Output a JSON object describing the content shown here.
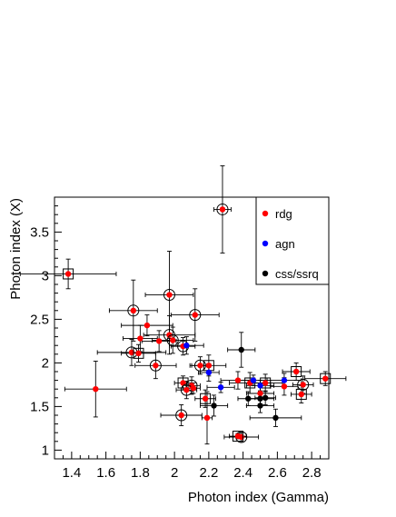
{
  "chart_data": {
    "type": "scatter",
    "xlabel": "Photon index (Gamma)",
    "ylabel": "Photon index (X)",
    "xlim": [
      1.3,
      2.9
    ],
    "ylim": [
      0.9,
      3.9
    ],
    "x_ticks": [
      "1.4",
      "1.6",
      "1.8",
      "2",
      "2.2",
      "2.4",
      "2.6",
      "2.8"
    ],
    "x_tick_values": [
      1.4,
      1.6,
      1.8,
      2.0,
      2.2,
      2.4,
      2.6,
      2.8
    ],
    "y_ticks": [
      "1",
      "1.5",
      "2",
      "2.5",
      "3",
      "3.5"
    ],
    "y_tick_values": [
      1.0,
      1.5,
      2.0,
      2.5,
      3.0,
      3.5
    ],
    "legend_position": "top-right",
    "colors": {
      "rdg": "#ff0000",
      "agn": "#0000ff",
      "css/ssrq": "#000000"
    },
    "series": [
      {
        "name": "rdg",
        "marker_color": "#ff0000",
        "points": [
          {
            "x": 2.28,
            "y": 3.76,
            "xerr": 0.05,
            "yerr": 0.5,
            "marker": "circle"
          },
          {
            "x": 1.38,
            "y": 3.02,
            "xerr": 0.28,
            "yerr": 0.17,
            "marker": "box"
          },
          {
            "x": 1.97,
            "y": 2.78,
            "xerr": 0.14,
            "yerr": 0.5,
            "marker": "circle"
          },
          {
            "x": 1.76,
            "y": 2.6,
            "xerr": 0.14,
            "yerr": 0.35,
            "marker": "circle"
          },
          {
            "x": 2.12,
            "y": 2.55,
            "xerr": 0.14,
            "yerr": 0.3,
            "marker": "circle"
          },
          {
            "x": 1.84,
            "y": 2.43,
            "xerr": 0.15,
            "yerr": 0.12
          },
          {
            "x": 1.97,
            "y": 2.32,
            "xerr": 0.15,
            "yerr": 0.22,
            "marker": "circle"
          },
          {
            "x": 1.8,
            "y": 2.28,
            "xerr": 0.1,
            "yerr": 0.15
          },
          {
            "x": 1.91,
            "y": 2.25,
            "xerr": 0.1,
            "yerr": 0.12
          },
          {
            "x": 1.99,
            "y": 2.26,
            "xerr": 0.12,
            "yerr": 0.15,
            "marker": "circle"
          },
          {
            "x": 2.05,
            "y": 2.19,
            "xerr": 0.07,
            "yerr": 0.1,
            "marker": "circle"
          },
          {
            "x": 1.75,
            "y": 2.12,
            "xerr": 0.2,
            "yerr": 0.15,
            "marker": "circle"
          },
          {
            "x": 1.79,
            "y": 2.11,
            "xerr": 0.1,
            "yerr": 0.1,
            "marker": "box"
          },
          {
            "x": 1.89,
            "y": 1.97,
            "xerr": 0.12,
            "yerr": 0.15,
            "marker": "circle"
          },
          {
            "x": 2.15,
            "y": 1.97,
            "xerr": 0.06,
            "yerr": 0.1,
            "marker": "circle"
          },
          {
            "x": 2.2,
            "y": 1.97,
            "xerr": 0.1,
            "yerr": 0.12,
            "marker": "box"
          },
          {
            "x": 2.05,
            "y": 1.77,
            "xerr": 0.05,
            "yerr": 0.08,
            "marker": "box"
          },
          {
            "x": 2.1,
            "y": 1.74,
            "xerr": 0.05,
            "yerr": 0.1,
            "marker": "circle"
          },
          {
            "x": 2.07,
            "y": 1.69,
            "xerr": 0.06,
            "yerr": 0.1,
            "marker": "circle"
          },
          {
            "x": 2.11,
            "y": 1.71,
            "xerr": 0.04,
            "yerr": 0.06
          },
          {
            "x": 2.37,
            "y": 1.8,
            "xerr": 0.1,
            "yerr": 0.1
          },
          {
            "x": 2.44,
            "y": 1.77,
            "xerr": 0.12,
            "yerr": 0.12,
            "marker": "box"
          },
          {
            "x": 2.53,
            "y": 1.77,
            "xerr": 0.1,
            "yerr": 0.1,
            "marker": "box"
          },
          {
            "x": 2.71,
            "y": 1.9,
            "xerr": 0.08,
            "yerr": 0.1,
            "marker": "box"
          },
          {
            "x": 2.88,
            "y": 1.82,
            "xerr": 0.12,
            "yerr": 0.08,
            "marker": "box"
          },
          {
            "x": 2.64,
            "y": 1.73,
            "xerr": 0.08,
            "yerr": 0.1
          },
          {
            "x": 2.75,
            "y": 1.75,
            "xerr": 0.06,
            "yerr": 0.1,
            "marker": "circle"
          },
          {
            "x": 2.74,
            "y": 1.64,
            "xerr": 0.06,
            "yerr": 0.1,
            "marker": "box"
          },
          {
            "x": 2.5,
            "y": 1.65,
            "xerr": 0.08,
            "yerr": 0.08
          },
          {
            "x": 1.54,
            "y": 1.7,
            "xerr": 0.18,
            "yerr": 0.32
          },
          {
            "x": 2.18,
            "y": 1.59,
            "xerr": 0.06,
            "yerr": 0.1,
            "marker": "box"
          },
          {
            "x": 2.04,
            "y": 1.4,
            "xerr": 0.12,
            "yerr": 0.12,
            "marker": "circle"
          },
          {
            "x": 2.19,
            "y": 1.37,
            "xerr": 0.03,
            "yerr": 0.3
          },
          {
            "x": 2.39,
            "y": 1.15,
            "xerr": 0.1,
            "yerr": 0.05,
            "marker": "circle"
          },
          {
            "x": 2.37,
            "y": 1.16,
            "xerr": 0.05,
            "yerr": 0.03,
            "marker": "box"
          }
        ]
      },
      {
        "name": "agn",
        "marker_color": "#0000ff",
        "points": [
          {
            "x": 2.07,
            "y": 2.2,
            "xerr": 0.1,
            "yerr": 0.1
          },
          {
            "x": 2.2,
            "y": 1.89,
            "xerr": 0.06,
            "yerr": 0.1
          },
          {
            "x": 2.27,
            "y": 1.72,
            "xerr": 0.08,
            "yerr": 0.06
          },
          {
            "x": 2.46,
            "y": 1.8,
            "xerr": 0.08,
            "yerr": 0.06
          },
          {
            "x": 2.5,
            "y": 1.74,
            "xerr": 0.08,
            "yerr": 0.06
          },
          {
            "x": 2.64,
            "y": 1.8,
            "xerr": 0.1,
            "yerr": 0.08
          }
        ]
      },
      {
        "name": "css/ssrq",
        "marker_color": "#000000",
        "points": [
          {
            "x": 2.39,
            "y": 2.15,
            "xerr": 0.08,
            "yerr": 0.2
          },
          {
            "x": 2.43,
            "y": 1.59,
            "xerr": 0.06,
            "yerr": 0.08
          },
          {
            "x": 2.5,
            "y": 1.59,
            "xerr": 0.08,
            "yerr": 0.08
          },
          {
            "x": 2.53,
            "y": 1.6,
            "xerr": 0.06,
            "yerr": 0.08
          },
          {
            "x": 2.5,
            "y": 1.51,
            "xerr": 0.08,
            "yerr": 0.08
          },
          {
            "x": 2.23,
            "y": 1.51,
            "xerr": 0.08,
            "yerr": 0.12
          },
          {
            "x": 2.59,
            "y": 1.37,
            "xerr": 0.15,
            "yerr": 0.1
          }
        ]
      }
    ]
  }
}
